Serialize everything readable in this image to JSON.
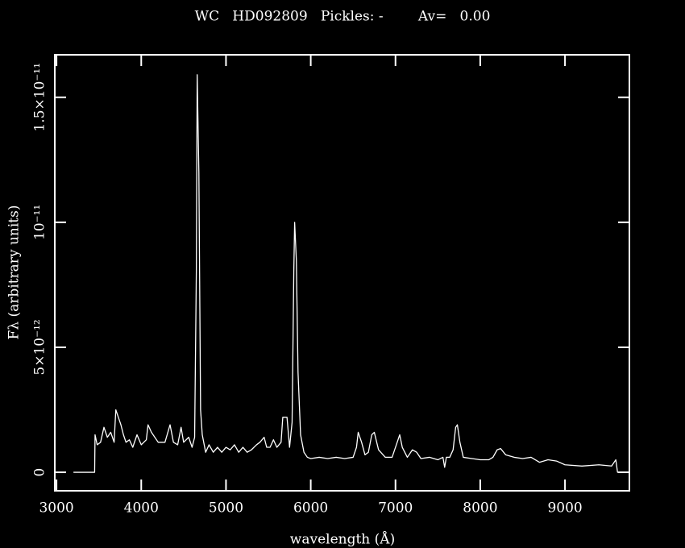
{
  "chart_data": {
    "type": "line",
    "title": "WC   HD092809   Pickles: -        Av=   0.00",
    "x_label": "wavelength (Å)",
    "y_label": "Fλ (arbitrary units)",
    "xlim": [
      2980,
      9760
    ],
    "ylim": [
      -7.4e-13,
      1.67e-11
    ],
    "xticks": [
      3000,
      4000,
      5000,
      6000,
      7000,
      8000,
      9000
    ],
    "yticks": [
      0,
      {
        "value": 5e-12,
        "label": "5×10⁻¹²"
      },
      {
        "value": 1e-11,
        "label": "10⁻¹¹"
      },
      {
        "value": 1.5e-11,
        "label": "1.5×10⁻¹¹"
      }
    ],
    "series": [
      {
        "color": "#ffffff",
        "x": [
          3200,
          3450,
          3455,
          3480,
          3520,
          3560,
          3600,
          3640,
          3680,
          3700,
          3730,
          3760,
          3790,
          3820,
          3860,
          3900,
          3950,
          4000,
          4060,
          4080,
          4120,
          4200,
          4280,
          4340,
          4380,
          4430,
          4470,
          4500,
          4560,
          4600,
          4630,
          4650,
          4660,
          4680,
          4700,
          4720,
          4760,
          4800,
          4850,
          4900,
          4950,
          5000,
          5050,
          5100,
          5150,
          5200,
          5250,
          5300,
          5360,
          5400,
          5450,
          5480,
          5520,
          5560,
          5600,
          5650,
          5670,
          5720,
          5750,
          5780,
          5800,
          5810,
          5830,
          5850,
          5880,
          5920,
          5960,
          6000,
          6100,
          6200,
          6300,
          6400,
          6500,
          6540,
          6560,
          6600,
          6640,
          6680,
          6720,
          6750,
          6800,
          6880,
          6960,
          7020,
          7050,
          7080,
          7140,
          7200,
          7250,
          7300,
          7400,
          7500,
          7560,
          7580,
          7600,
          7640,
          7680,
          7710,
          7730,
          7760,
          7800,
          7900,
          8000,
          8100,
          8150,
          8200,
          8240,
          8300,
          8400,
          8500,
          8600,
          8700,
          8800,
          8900,
          9000,
          9200,
          9400,
          9550,
          9600,
          9620,
          9760
        ],
        "values": [
          0,
          0,
          1.5e-12,
          1.1e-12,
          1.2e-12,
          1.8e-12,
          1.4e-12,
          1.6e-12,
          1.2e-12,
          2.5e-12,
          2.2e-12,
          1.9e-12,
          1.5e-12,
          1.2e-12,
          1.3e-12,
          1e-12,
          1.5e-12,
          1.1e-12,
          1.3e-12,
          1.9e-12,
          1.6e-12,
          1.2e-12,
          1.2e-12,
          1.9e-12,
          1.2e-12,
          1.1e-12,
          1.8e-12,
          1.2e-12,
          1.4e-12,
          1e-12,
          1.4e-12,
          8e-12,
          1.59e-11,
          1.2e-11,
          2.5e-12,
          1.5e-12,
          8e-13,
          1.1e-12,
          8e-13,
          1e-12,
          8e-13,
          1e-12,
          9e-13,
          1.1e-12,
          8e-13,
          1e-12,
          8e-13,
          9e-13,
          1.1e-12,
          1.2e-12,
          1.4e-12,
          1e-12,
          1e-12,
          1.3e-12,
          1e-12,
          1.2e-12,
          2.2e-12,
          2.2e-12,
          1e-12,
          2e-12,
          8e-12,
          1e-11,
          8.5e-12,
          4e-12,
          1.5e-12,
          8e-13,
          6e-13,
          5.5e-13,
          6e-13,
          5.5e-13,
          6e-13,
          5.5e-13,
          6e-13,
          1e-12,
          1.6e-12,
          1.2e-12,
          7e-13,
          8e-13,
          1.5e-12,
          1.6e-12,
          9e-13,
          6e-13,
          6e-13,
          1.2e-12,
          1.5e-12,
          1e-12,
          6e-13,
          9e-13,
          8e-13,
          5.5e-13,
          6e-13,
          5e-13,
          6e-13,
          2e-13,
          6e-13,
          6e-13,
          9e-13,
          1.8e-12,
          1.9e-12,
          1.2e-12,
          6e-13,
          5.5e-13,
          5e-13,
          5e-13,
          6e-13,
          9e-13,
          9.5e-13,
          7e-13,
          6e-13,
          5.5e-13,
          6e-13,
          4e-13,
          5e-13,
          4.5e-13,
          3e-13,
          2.5e-13,
          3e-13,
          2.5e-13,
          5e-13,
          0,
          0
        ]
      }
    ]
  }
}
